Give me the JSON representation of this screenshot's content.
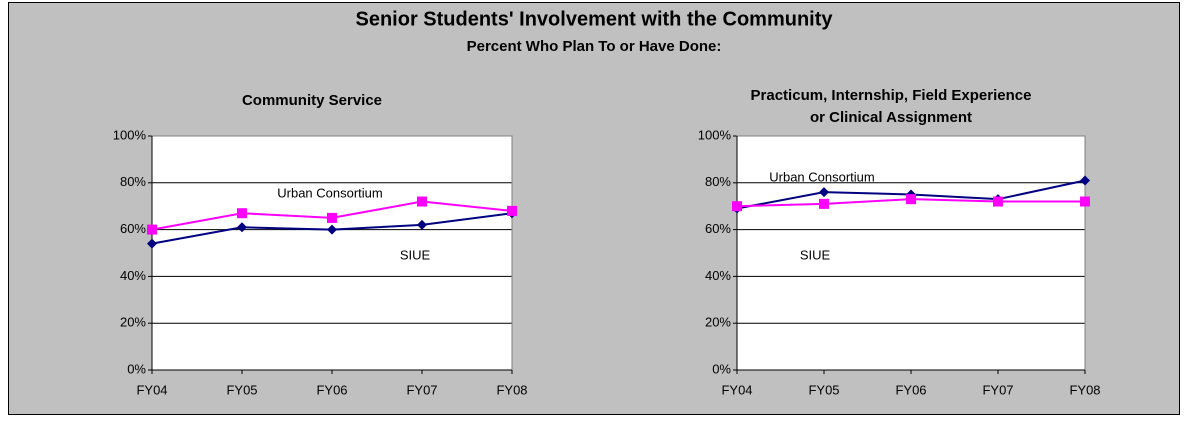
{
  "header": {
    "title": "Senior Students' Involvement with the Community",
    "subtitle": "Percent Who Plan To or Have Done:"
  },
  "chart_data": [
    {
      "type": "line",
      "title": [
        "Community Service"
      ],
      "categories": [
        "FY04",
        "FY05",
        "FY06",
        "FY07",
        "FY08"
      ],
      "series": [
        {
          "name": "SIUE",
          "color": "#000080",
          "marker": "diamond",
          "values": [
            54,
            61,
            60,
            62,
            67
          ]
        },
        {
          "name": "Urban Consortium",
          "color": "#ff00ff",
          "marker": "square",
          "values": [
            60,
            67,
            65,
            72,
            68
          ]
        }
      ],
      "ylim": [
        0,
        100
      ],
      "yticks": [
        {
          "value": 0,
          "label": "0%"
        },
        {
          "value": 20,
          "label": "20%"
        },
        {
          "value": 40,
          "label": "40%"
        },
        {
          "value": 60,
          "label": "60%"
        },
        {
          "value": 80,
          "label": "80%"
        },
        {
          "value": 100,
          "label": "100%"
        }
      ],
      "grid": true
    },
    {
      "type": "line",
      "title": [
        "Practicum, Internship, Field Experience",
        "or Clinical Assignment"
      ],
      "categories": [
        "FY04",
        "FY05",
        "FY06",
        "FY07",
        "FY08"
      ],
      "series": [
        {
          "name": "SIUE",
          "color": "#000080",
          "marker": "diamond",
          "values": [
            69,
            76,
            75,
            73,
            81
          ]
        },
        {
          "name": "Urban Consortium",
          "color": "#ff00ff",
          "marker": "square",
          "values": [
            70,
            71,
            73,
            72,
            72
          ]
        }
      ],
      "ylim": [
        0,
        100
      ],
      "yticks": [
        {
          "value": 0,
          "label": "0%"
        },
        {
          "value": 20,
          "label": "20%"
        },
        {
          "value": 40,
          "label": "40%"
        },
        {
          "value": 60,
          "label": "60%"
        },
        {
          "value": 80,
          "label": "80%"
        },
        {
          "value": 100,
          "label": "100%"
        }
      ],
      "grid": true
    }
  ]
}
